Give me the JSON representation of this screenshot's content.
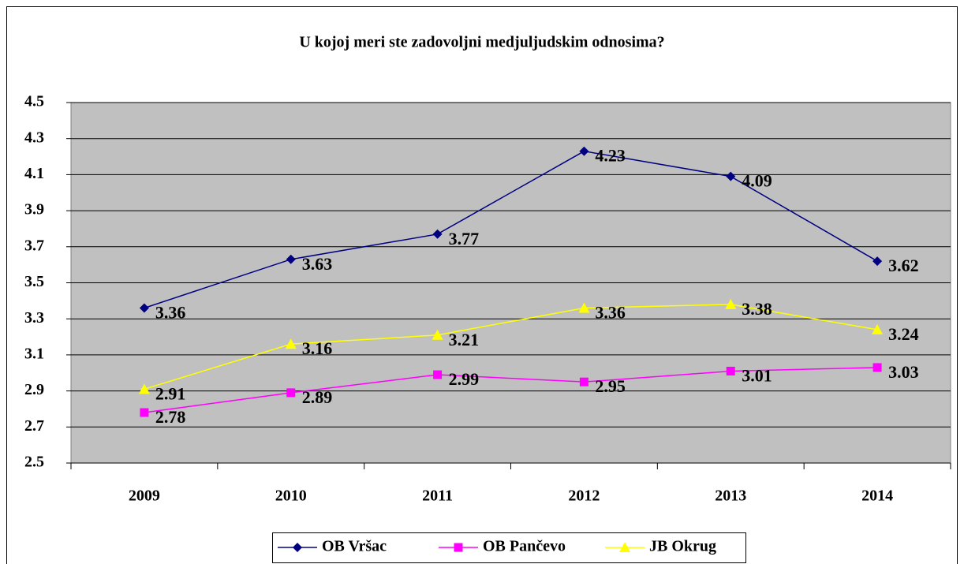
{
  "chart_data": {
    "type": "line",
    "title": "U kojoj meri ste zadovoljni medjuljudskim odnosima?",
    "categories": [
      "2009",
      "2010",
      "2011",
      "2012",
      "2013",
      "2014"
    ],
    "series": [
      {
        "name": "OB Vršac",
        "color": "#000080",
        "marker": "diamond",
        "values": [
          3.36,
          3.63,
          3.77,
          4.23,
          4.09,
          3.62
        ]
      },
      {
        "name": "OB Pančevo",
        "color": "#ff00ff",
        "marker": "square",
        "values": [
          2.78,
          2.89,
          2.99,
          2.95,
          3.01,
          3.03
        ]
      },
      {
        "name": "JB Okrug",
        "color": "#ffff00",
        "marker": "triangle",
        "values": [
          2.91,
          3.16,
          3.21,
          3.36,
          3.38,
          3.24
        ]
      }
    ],
    "ylim": [
      2.5,
      4.5
    ],
    "yticks": [
      2.5,
      2.7,
      2.9,
      3.1,
      3.3,
      3.5,
      3.7,
      3.9,
      4.1,
      4.3,
      4.5
    ],
    "grid": true,
    "legend": "bottom"
  }
}
